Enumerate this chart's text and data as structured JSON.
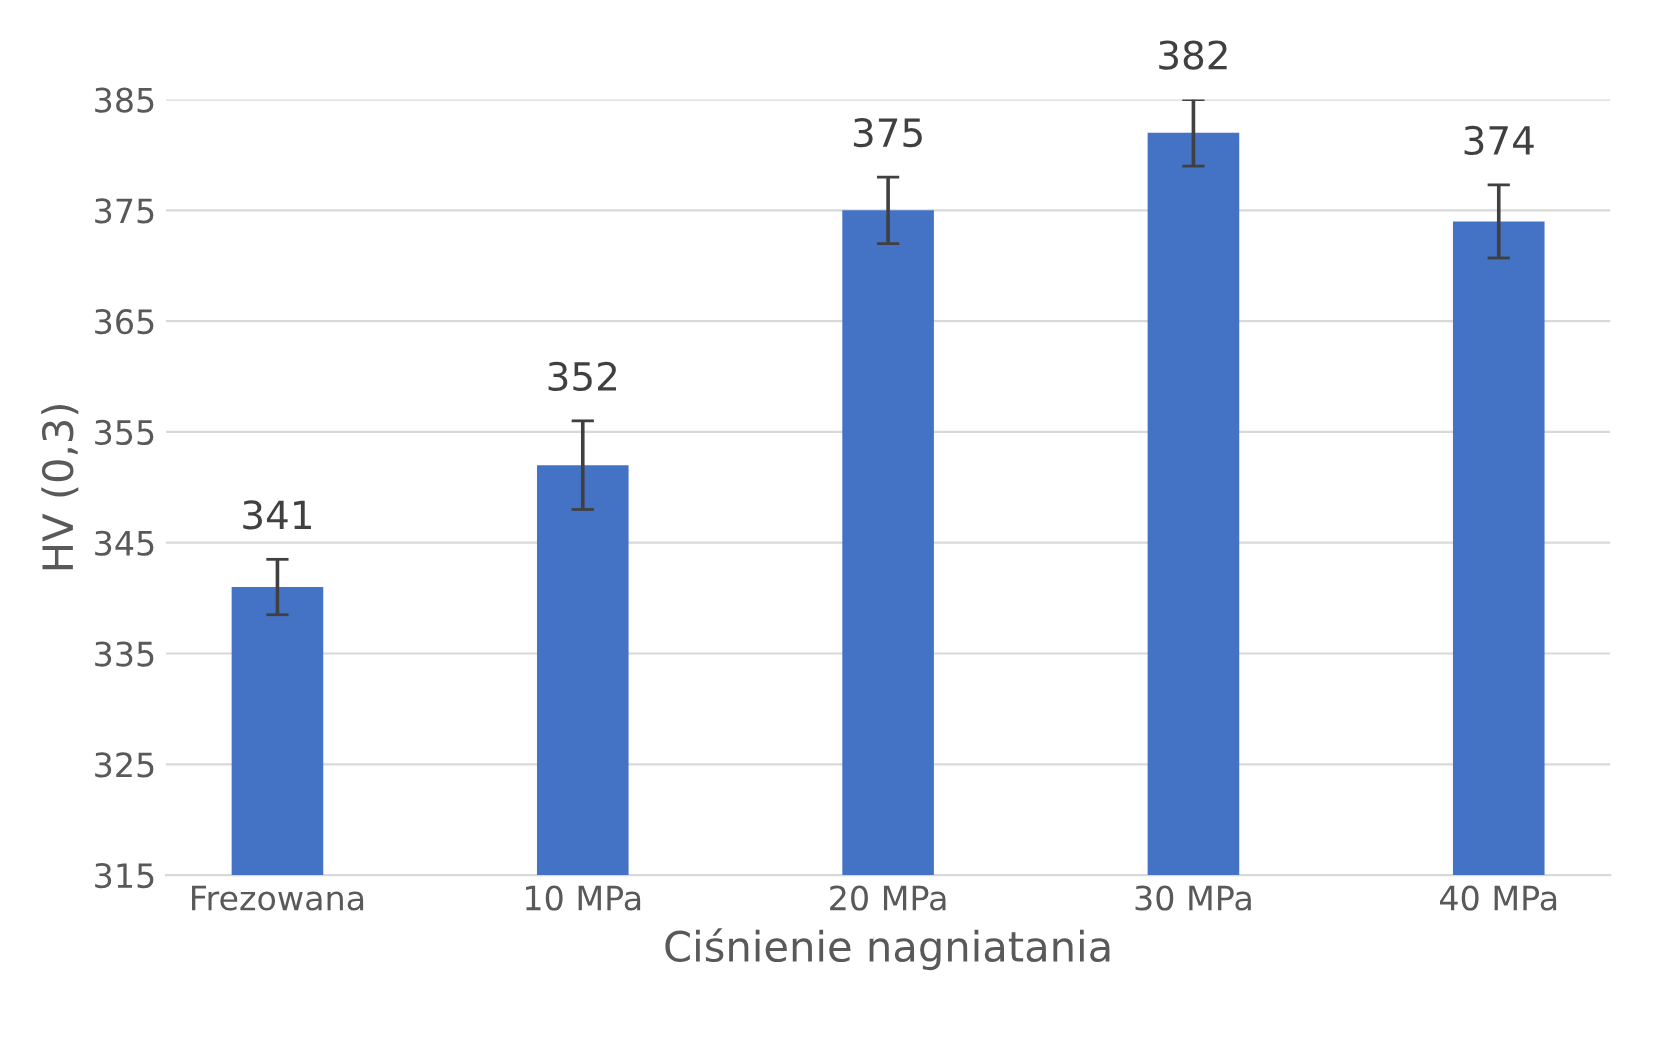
{
  "chart_data": {
    "type": "bar",
    "xlabel": "Ciśnienie nagniatania",
    "ylabel": "HV (0,3)",
    "categories": [
      "Frezowana",
      "10 MPa",
      "20 MPa",
      "30 MPa",
      "40 MPa"
    ],
    "values": [
      341,
      352,
      375,
      382,
      374
    ],
    "errors": [
      2.5,
      4,
      3,
      3,
      3.3
    ],
    "color": "#4472c4",
    "ylim": [
      315,
      385
    ],
    "yticks": [
      315,
      325,
      335,
      345,
      355,
      365,
      375,
      385
    ],
    "grid": "y",
    "data_labels": true
  }
}
